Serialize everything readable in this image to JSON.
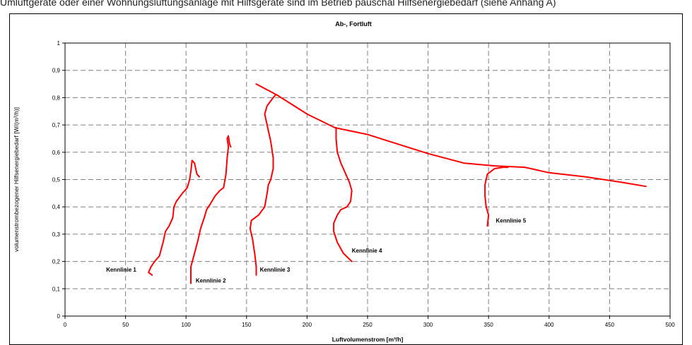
{
  "caption": "Umluftgeräte oder einer Wohnungslüftungsanlage mit Hilfsgeräte sind im Betrieb pauschal Hilfsenergiebedarf (siehe Anhang A)",
  "chart_data": {
    "type": "line",
    "title": "Ab-, Fortluft",
    "xlabel": "Luftvolumenstrom [m³/h]",
    "ylabel": "volumenstrombezogener Hilfsenergiebedarf [W/(m³/h)]",
    "xlim": [
      0,
      500
    ],
    "ylim": [
      0,
      1
    ],
    "x_ticks": [
      "0",
      "50",
      "100",
      "150",
      "200",
      "250",
      "300",
      "350",
      "400",
      "450",
      "500"
    ],
    "y_ticks": [
      "0",
      "0,1",
      "0,2",
      "0,3",
      "0,4",
      "0,5",
      "0,6",
      "0,7",
      "0,8",
      "0,9",
      "1"
    ],
    "grid": true,
    "line_color": "#ff0000",
    "series": [
      {
        "name": "Kennlinie 1",
        "label_at": [
          34,
          0.17
        ],
        "points": [
          [
            72,
            0.15
          ],
          [
            69,
            0.16
          ],
          [
            71,
            0.18
          ],
          [
            74,
            0.2
          ],
          [
            78,
            0.22
          ],
          [
            81,
            0.27
          ],
          [
            83,
            0.31
          ],
          [
            86,
            0.33
          ],
          [
            89,
            0.36
          ],
          [
            90,
            0.4
          ],
          [
            92,
            0.42
          ],
          [
            97,
            0.45
          ],
          [
            101,
            0.47
          ],
          [
            103,
            0.5
          ],
          [
            104,
            0.53
          ],
          [
            105,
            0.57
          ],
          [
            107,
            0.56
          ],
          [
            109,
            0.52
          ],
          [
            111,
            0.51
          ]
        ]
      },
      {
        "name": "Kennlinie 2",
        "label_at": [
          108,
          0.13
        ],
        "points": [
          [
            104,
            0.12
          ],
          [
            104,
            0.18
          ],
          [
            107,
            0.23
          ],
          [
            110,
            0.28
          ],
          [
            112,
            0.32
          ],
          [
            115,
            0.36
          ],
          [
            117,
            0.39
          ],
          [
            120,
            0.41
          ],
          [
            124,
            0.44
          ],
          [
            128,
            0.46
          ],
          [
            131,
            0.47
          ],
          [
            133,
            0.52
          ],
          [
            134,
            0.58
          ],
          [
            135,
            0.62
          ],
          [
            134,
            0.65
          ],
          [
            135,
            0.66
          ],
          [
            136,
            0.63
          ],
          [
            137,
            0.62
          ]
        ]
      },
      {
        "name": "Kennlinie 3",
        "label_at": [
          161,
          0.17
        ],
        "points": [
          [
            158,
            0.15
          ],
          [
            158,
            0.18
          ],
          [
            157,
            0.22
          ],
          [
            155,
            0.28
          ],
          [
            153,
            0.32
          ],
          [
            154,
            0.35
          ],
          [
            160,
            0.37
          ],
          [
            165,
            0.4
          ],
          [
            167,
            0.45
          ],
          [
            168,
            0.48
          ],
          [
            170,
            0.5
          ],
          [
            172,
            0.54
          ],
          [
            172,
            0.58
          ],
          [
            170,
            0.64
          ],
          [
            167,
            0.7
          ],
          [
            165,
            0.74
          ],
          [
            167,
            0.77
          ],
          [
            172,
            0.8
          ],
          [
            174,
            0.81
          ]
        ]
      },
      {
        "name": "Kennlinie 4",
        "label_at": [
          237,
          0.24
        ],
        "points": [
          [
            237,
            0.2
          ],
          [
            230,
            0.23
          ],
          [
            225,
            0.27
          ],
          [
            222,
            0.31
          ],
          [
            222,
            0.34
          ],
          [
            225,
            0.37
          ],
          [
            228,
            0.39
          ],
          [
            233,
            0.4
          ],
          [
            236,
            0.42
          ],
          [
            237,
            0.46
          ],
          [
            235,
            0.49
          ],
          [
            232,
            0.52
          ],
          [
            228,
            0.56
          ],
          [
            225,
            0.6
          ],
          [
            224,
            0.65
          ],
          [
            224,
            0.69
          ]
        ]
      },
      {
        "name": "Kennlinie 5",
        "label_at": [
          356,
          0.35
        ],
        "points": [
          [
            349,
            0.33
          ],
          [
            350,
            0.37
          ],
          [
            348,
            0.4
          ],
          [
            347,
            0.44
          ],
          [
            347,
            0.48
          ],
          [
            349,
            0.52
          ],
          [
            355,
            0.54
          ],
          [
            362,
            0.545
          ],
          [
            366,
            0.545
          ]
        ]
      },
      {
        "name": "",
        "label_at": null,
        "points": [
          [
            158,
            0.85
          ],
          [
            175,
            0.81
          ],
          [
            200,
            0.74
          ],
          [
            223,
            0.69
          ],
          [
            250,
            0.665
          ],
          [
            275,
            0.63
          ],
          [
            300,
            0.595
          ],
          [
            330,
            0.56
          ],
          [
            355,
            0.55
          ],
          [
            380,
            0.545
          ],
          [
            400,
            0.525
          ],
          [
            430,
            0.51
          ],
          [
            460,
            0.49
          ],
          [
            480,
            0.475
          ]
        ]
      }
    ]
  }
}
